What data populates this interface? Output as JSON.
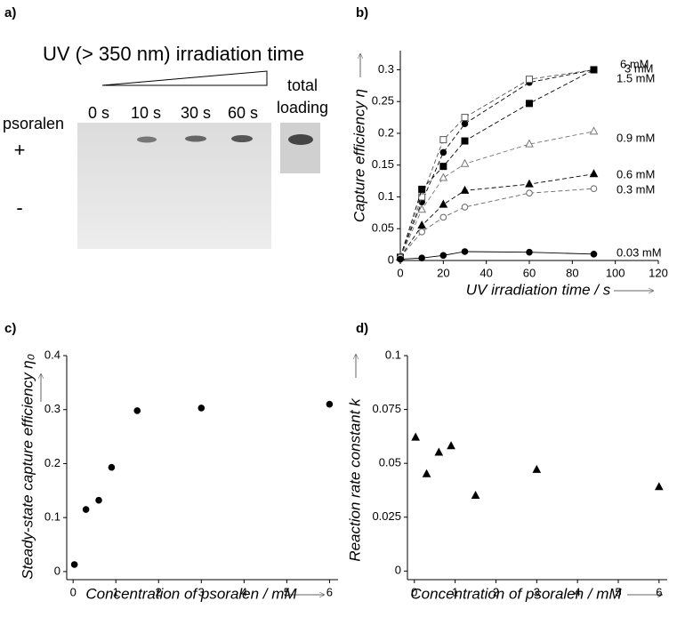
{
  "gel": {
    "label": "a)",
    "title": "UV (> 350 nm) irradiation time",
    "lanes": [
      "0 s",
      "10 s",
      "30 s",
      "60 s"
    ],
    "total": [
      "total",
      "loading"
    ],
    "row_label": "psoralen",
    "rows": [
      "+",
      "-"
    ]
  },
  "chart_data": [
    {
      "type": "scatter",
      "label": "b)",
      "xlabel": "UV irradiation time / s",
      "ylabel": "Capture efficiency η",
      "x": [
        0,
        10,
        20,
        30,
        60,
        90
      ],
      "xlim": [
        0,
        120
      ],
      "ylim": [
        0,
        0.33
      ],
      "xticks": [
        0,
        20,
        40,
        60,
        80,
        100,
        120
      ],
      "yticks": [
        0,
        0.05,
        0.1,
        0.15,
        0.2,
        0.25,
        0.3
      ],
      "series": [
        {
          "name": "6 mM",
          "color": "#000000",
          "marker": "circle",
          "filled": true,
          "linestyle": "dashed",
          "values": [
            0.005,
            0.092,
            0.17,
            0.215,
            0.28,
            0.3
          ]
        },
        {
          "name": "3 mM",
          "color": "#555555",
          "marker": "square",
          "filled": false,
          "linestyle": "dashed",
          "values": [
            0.005,
            0.1,
            0.19,
            0.225,
            0.285,
            0.3
          ]
        },
        {
          "name": "1.5 mM",
          "color": "#000000",
          "marker": "square",
          "filled": true,
          "linestyle": "dashed",
          "values": [
            0.005,
            0.112,
            0.148,
            0.188,
            0.247,
            0.3
          ]
        },
        {
          "name": "0.9 mM",
          "color": "#777777",
          "marker": "triangle",
          "filled": false,
          "linestyle": "dashed",
          "values": [
            0.005,
            0.08,
            0.13,
            0.152,
            0.183,
            0.203
          ]
        },
        {
          "name": "0.6 mM",
          "color": "#000000",
          "marker": "triangle",
          "filled": true,
          "linestyle": "dashed",
          "values": [
            0.005,
            0.055,
            0.088,
            0.11,
            0.12,
            0.136
          ]
        },
        {
          "name": "0.3 mM",
          "color": "#666666",
          "marker": "circle",
          "filled": false,
          "linestyle": "dashed",
          "values": [
            0.005,
            0.045,
            0.068,
            0.084,
            0.106,
            0.113
          ]
        },
        {
          "name": "0.03 mM",
          "color": "#000000",
          "marker": "circle",
          "filled": true,
          "linestyle": "solid",
          "values": [
            0.002,
            0.004,
            0.008,
            0.014,
            0.013,
            0.01
          ]
        }
      ]
    },
    {
      "type": "scatter",
      "label": "c)",
      "xlabel": "Concentration of psoralen / mM",
      "ylabel": "Steady-state capture efficiency η₀",
      "x": [
        0.03,
        0.3,
        0.6,
        0.9,
        1.5,
        3,
        6
      ],
      "values": [
        0.013,
        0.115,
        0.132,
        0.193,
        0.298,
        0.303,
        0.31
      ],
      "color": "#000000",
      "marker": "circle",
      "filled": true,
      "xlim": [
        -0.15,
        6.2
      ],
      "ylim": [
        -0.015,
        0.4
      ],
      "xticks": [
        0,
        1,
        2,
        3,
        4,
        5,
        6
      ],
      "yticks": [
        0,
        0.1,
        0.2,
        0.3,
        0.4
      ]
    },
    {
      "type": "scatter",
      "label": "d)",
      "xlabel": "Concentration of psoralen / mM",
      "ylabel": "Reaction rate constant k",
      "x": [
        0.03,
        0.3,
        0.6,
        0.9,
        1.5,
        3,
        6
      ],
      "values": [
        0.062,
        0.045,
        0.055,
        0.058,
        0.035,
        0.047,
        0.039
      ],
      "color": "#000000",
      "marker": "triangle",
      "filled": true,
      "xlim": [
        -0.17,
        6.2
      ],
      "ylim": [
        -0.004,
        0.1
      ],
      "xticks": [
        0,
        1,
        2,
        3,
        4,
        5,
        6
      ],
      "yticks": [
        0,
        0.025,
        0.05,
        0.075,
        0.1
      ]
    }
  ]
}
